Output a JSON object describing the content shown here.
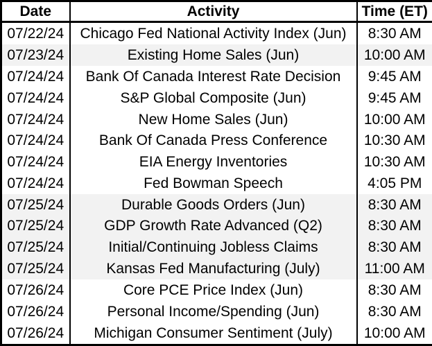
{
  "colors": {
    "border": "#000000",
    "text": "#000000",
    "row_default": "#ffffff",
    "row_band": "#f2f2f2"
  },
  "table": {
    "headers": [
      {
        "label": "Date"
      },
      {
        "label": "Activity"
      },
      {
        "label": "Time (ET)"
      }
    ],
    "rows": [
      {
        "date": "07/22/24",
        "activity": "Chicago Fed National Activity Index (Jun)",
        "time": "8:30 AM",
        "shaded": false
      },
      {
        "date": "07/23/24",
        "activity": "Existing Home Sales (Jun)",
        "time": "10:00 AM",
        "shaded": true
      },
      {
        "date": "07/24/24",
        "activity": "Bank Of Canada Interest Rate Decision",
        "time": "9:45 AM",
        "shaded": false
      },
      {
        "date": "07/24/24",
        "activity": "S&P Global Composite (Jun)",
        "time": "9:45 AM",
        "shaded": false
      },
      {
        "date": "07/24/24",
        "activity": "New Home Sales (Jun)",
        "time": "10:00 AM",
        "shaded": false
      },
      {
        "date": "07/24/24",
        "activity": "Bank Of Canada Press Conference",
        "time": "10:30 AM",
        "shaded": false
      },
      {
        "date": "07/24/24",
        "activity": "EIA Energy Inventories",
        "time": "10:30 AM",
        "shaded": false
      },
      {
        "date": "07/24/24",
        "activity": "Fed Bowman Speech",
        "time": "4:05 PM",
        "shaded": false
      },
      {
        "date": "07/25/24",
        "activity": "Durable Goods Orders (Jun)",
        "time": "8:30 AM",
        "shaded": true
      },
      {
        "date": "07/25/24",
        "activity": "GDP Growth Rate Advanced (Q2)",
        "time": "8:30 AM",
        "shaded": true
      },
      {
        "date": "07/25/24",
        "activity": "Initial/Continuing Jobless Claims",
        "time": "8:30 AM",
        "shaded": true
      },
      {
        "date": "07/25/24",
        "activity": "Kansas Fed Manufacturing (July)",
        "time": "11:00 AM",
        "shaded": true
      },
      {
        "date": "07/26/24",
        "activity": "Core PCE Price Index (Jun)",
        "time": "8:30 AM",
        "shaded": false
      },
      {
        "date": "07/26/24",
        "activity": "Personal Income/Spending (Jun)",
        "time": "8:30 AM",
        "shaded": false
      },
      {
        "date": "07/26/24",
        "activity": "Michigan Consumer Sentiment (July)",
        "time": "10:00 AM",
        "shaded": false
      }
    ]
  },
  "chart_data": {
    "type": "table",
    "columns": [
      "Date",
      "Activity",
      "Time (ET)"
    ],
    "rows": [
      [
        "07/22/24",
        "Chicago Fed National Activity Index (Jun)",
        "8:30 AM"
      ],
      [
        "07/23/24",
        "Existing Home Sales (Jun)",
        "10:00 AM"
      ],
      [
        "07/24/24",
        "Bank Of Canada Interest Rate Decision",
        "9:45 AM"
      ],
      [
        "07/24/24",
        "S&P Global Composite (Jun)",
        "9:45 AM"
      ],
      [
        "07/24/24",
        "New Home Sales (Jun)",
        "10:00 AM"
      ],
      [
        "07/24/24",
        "Bank Of Canada Press Conference",
        "10:30 AM"
      ],
      [
        "07/24/24",
        "EIA Energy Inventories",
        "10:30 AM"
      ],
      [
        "07/24/24",
        "Fed Bowman Speech",
        "4:05 PM"
      ],
      [
        "07/25/24",
        "Durable Goods Orders (Jun)",
        "8:30 AM"
      ],
      [
        "07/25/24",
        "GDP Growth Rate Advanced (Q2)",
        "8:30 AM"
      ],
      [
        "07/25/24",
        "Initial/Continuing Jobless Claims",
        "8:30 AM"
      ],
      [
        "07/25/24",
        "Kansas Fed Manufacturing (July)",
        "11:00 AM"
      ],
      [
        "07/26/24",
        "Core PCE Price Index (Jun)",
        "8:30 AM"
      ],
      [
        "07/26/24",
        "Personal Income/Spending (Jun)",
        "8:30 AM"
      ],
      [
        "07/26/24",
        "Michigan Consumer Sentiment (July)",
        "10:00 AM"
      ]
    ],
    "layout": {
      "banding": "rows grouped by date; 07/23 and 07/25 groups shaded light gray",
      "gridlines": "vertical column separators only, thick black outer border"
    }
  }
}
